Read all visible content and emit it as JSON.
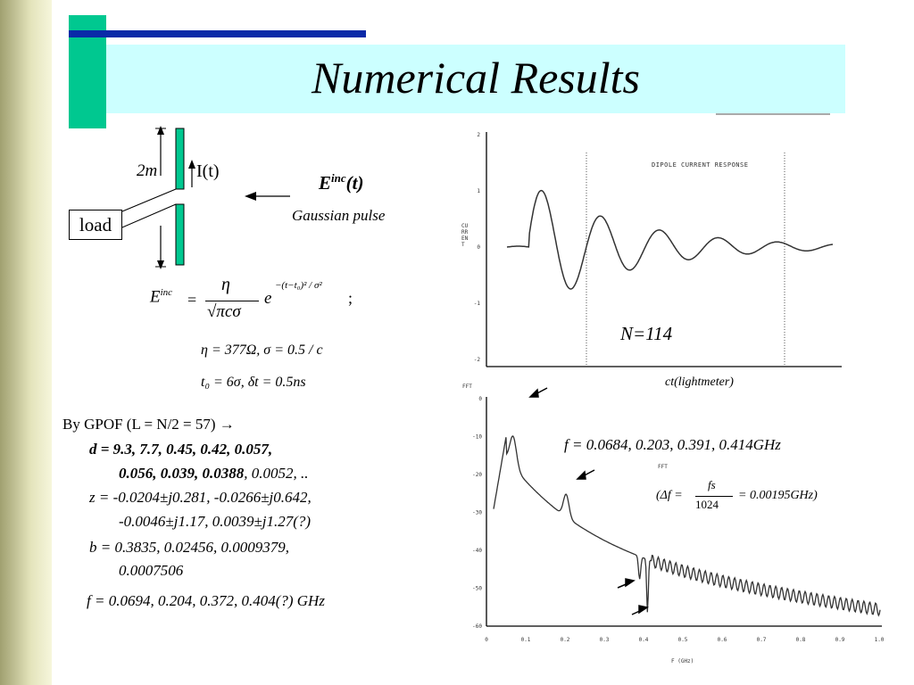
{
  "title": "Numerical Results",
  "diagram": {
    "height_label": "2m",
    "current_label": "I(t)",
    "load_label": "load",
    "field_label": "E",
    "field_sup": "inc",
    "field_arg": "(t)",
    "pulse_label": "Gaussian pulse"
  },
  "formula": {
    "lhs": "E",
    "lhs_sup": "inc",
    "numerator": "η",
    "denominator": "√πcσ",
    "exp_base": "e",
    "exponent": "−(t−t₀)² / σ²",
    "end": ";",
    "params1": "η = 377Ω, σ = 0.5 / c",
    "params2": "t₀ = 6σ, δt = 0.5ns"
  },
  "gpof": {
    "header": "By GPOF (L = N/2 = 57)  →",
    "d_line1": "d = 9.3, 7.7, 0.45, 0.42, 0.057,",
    "d_line2_bold": "0.056, 0.039, 0.0388",
    "d_line2_rest": ", 0.0052, ..",
    "z_line1": "z = -0.0204±j0.281, -0.0266±j0.642,",
    "z_line2": "-0.0046±j1.17, 0.0039±j1.27(?)",
    "b_line1": "b = 0.3835, 0.02456, 0.0009379,",
    "b_line2": "0.0007506",
    "f_line": "f = 0.0694, 0.204, 0.372, 0.404(?) GHz"
  },
  "top_plot": {
    "n_label": "N=114",
    "inner_title": "DIPOLE CURRENT RESPONSE",
    "ylabel": "CURRENT",
    "xlabel": "ct(lightmeter)",
    "yticks": [
      "2",
      "1",
      "0",
      "-1",
      "-2"
    ]
  },
  "bottom_plot": {
    "ylabel": "FFT",
    "xlabel": "F (GHz)",
    "inner_label": "FFT",
    "freq_annotation": "f = 0.0684, 0.203, 0.391, 0.414GHz",
    "delta_lhs": "(Δf =",
    "delta_num": "fs",
    "delta_den": "1024",
    "delta_rhs": "= 0.00195GHz)",
    "yticks": [
      "0",
      "-10",
      "-20",
      "-30",
      "-40",
      "-50",
      "-60"
    ],
    "xticks": [
      "0",
      "0.1",
      "0.2",
      "0.3",
      "0.4",
      "0.5",
      "0.6",
      "0.7",
      "0.8",
      "0.9",
      "1.0"
    ]
  }
}
